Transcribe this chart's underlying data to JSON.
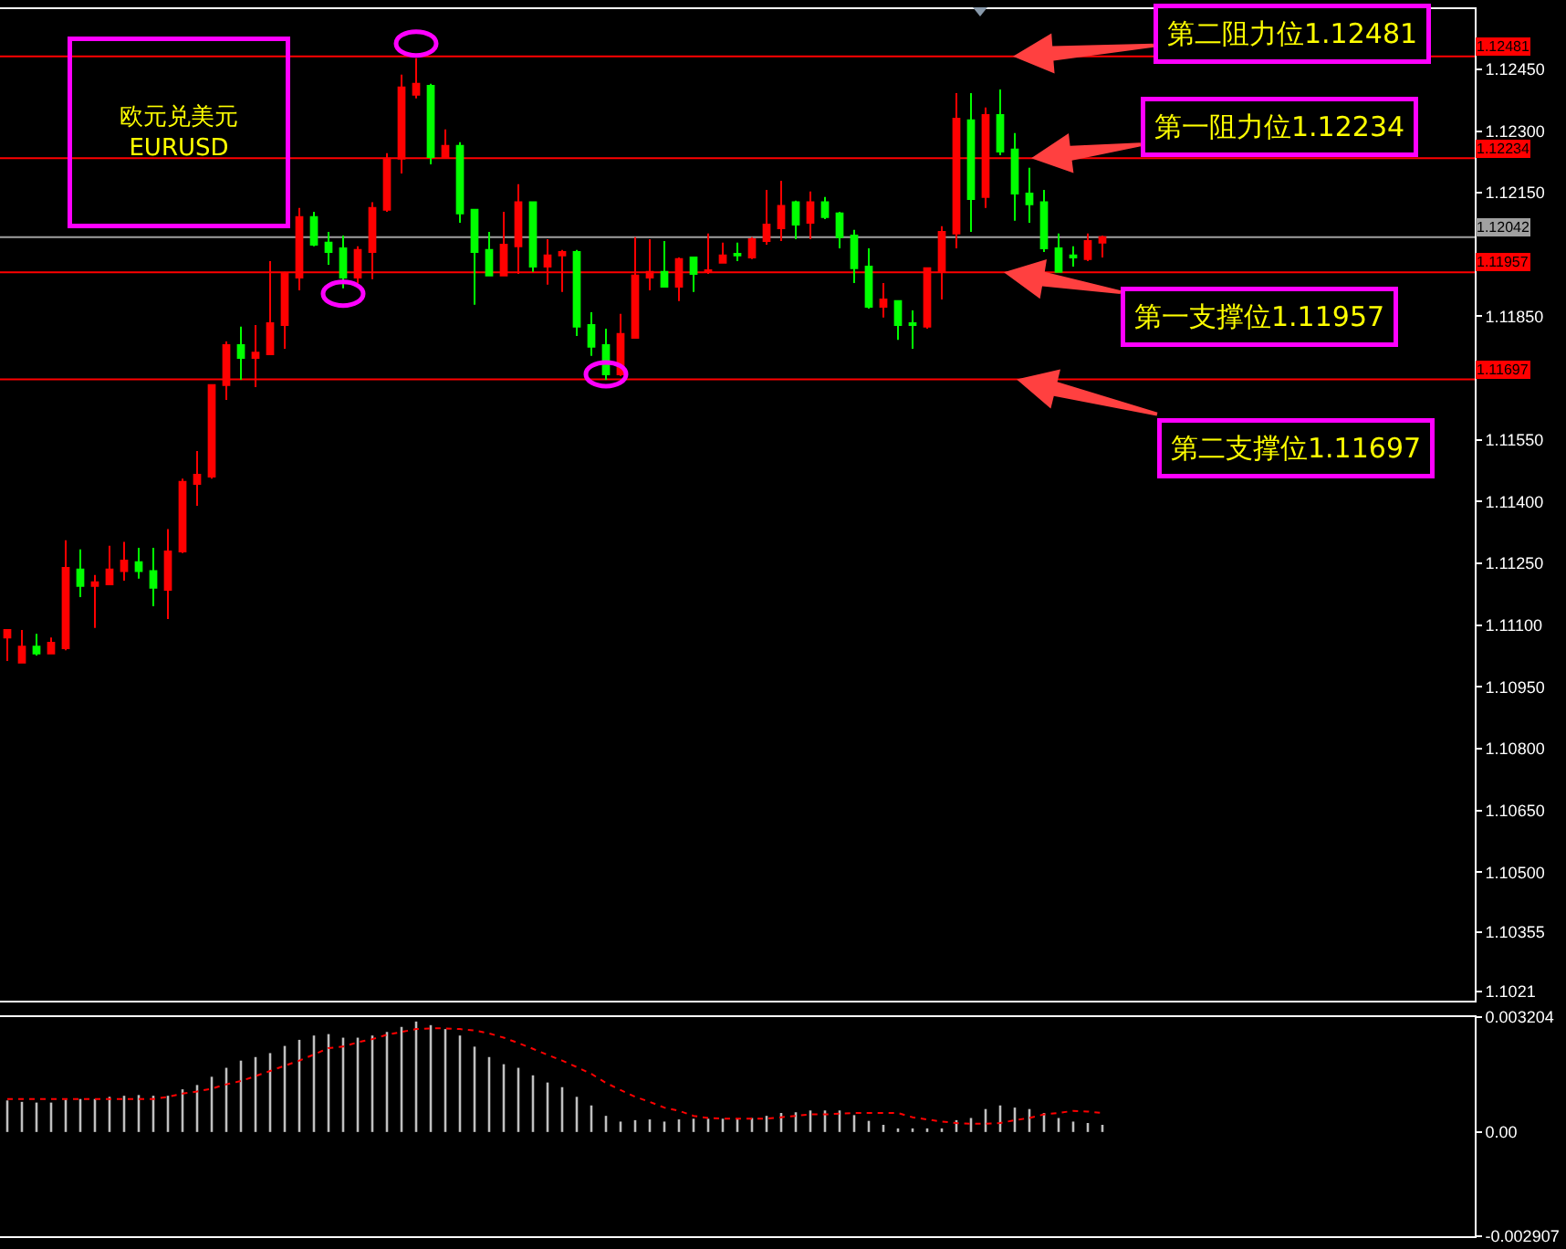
{
  "chart_data": [
    {
      "type": "candlestick",
      "categories": [
        null,
        null,
        null,
        null,
        null,
        null,
        null,
        null,
        null,
        null,
        null,
        null,
        null,
        null,
        null,
        null,
        null,
        null,
        null,
        null,
        null,
        null,
        null,
        null,
        null,
        null,
        null,
        null,
        null,
        null,
        null,
        null,
        null,
        null,
        null,
        null,
        null,
        null,
        null,
        null,
        null,
        null,
        null,
        null,
        null,
        null,
        null,
        null,
        null,
        null,
        null,
        null,
        null,
        null,
        null,
        null,
        null,
        null,
        null,
        null,
        null,
        null,
        null,
        null,
        null,
        null,
        null,
        null,
        null,
        null,
        null,
        null,
        null,
        null,
        null,
        null,
        null,
        null,
        null,
        null,
        null,
        null,
        null,
        null,
        null,
        null,
        null,
        null,
        null,
        null,
        null,
        null,
        null,
        null,
        null,
        null,
        null,
        null,
        null,
        null,
        null
      ],
      "ohlc": [
        [
          1.1107,
          1.11088,
          1.11013,
          1.11088
        ],
        [
          1.11009,
          1.11088,
          1.11009,
          1.11048
        ],
        [
          1.11048,
          1.11079,
          1.11026,
          1.11031
        ],
        [
          1.11031,
          1.1107,
          1.11031,
          1.11057
        ],
        [
          1.11044,
          1.11306,
          1.11039,
          1.11239
        ],
        [
          1.11235,
          1.11284,
          1.11168,
          1.11195
        ],
        [
          1.11195,
          1.11222,
          1.11093,
          1.11204
        ],
        [
          1.11199,
          1.11293,
          1.11199,
          1.11235
        ],
        [
          1.11231,
          1.11302,
          1.11208,
          1.11257
        ],
        [
          1.11253,
          1.11288,
          1.11213,
          1.11231
        ],
        [
          1.11231,
          1.11288,
          1.11146,
          1.11191
        ],
        [
          1.11186,
          1.11333,
          1.11115,
          1.11279
        ],
        [
          1.11279,
          1.11456,
          1.11275,
          1.11448
        ],
        [
          1.11443,
          1.11523,
          1.1139,
          1.11465
        ],
        [
          1.11461,
          1.11683,
          1.11456,
          1.11683
        ],
        [
          1.11683,
          1.11789,
          1.11647,
          1.1178
        ],
        [
          1.1178,
          1.11825,
          1.11696,
          1.11749
        ],
        [
          1.11749,
          1.11829,
          1.11678,
          1.11762
        ],
        [
          1.11758,
          1.11984,
          1.11758,
          1.11833
        ],
        [
          1.11829,
          1.11958,
          1.11771,
          1.11953
        ],
        [
          1.11944,
          1.12113,
          1.11913,
          1.12091
        ],
        [
          1.12091,
          1.12104,
          1.1202,
          1.12024
        ],
        [
          1.12029,
          1.12055,
          1.11975,
          1.12006
        ],
        [
          1.12015,
          1.12046,
          1.11918,
          1.11944
        ],
        [
          1.11944,
          1.1202,
          1.11931,
          1.12011
        ],
        [
          1.12006,
          1.12127,
          1.1194,
          1.12113
        ],
        [
          1.12109,
          1.12246,
          1.12104,
          1.12233
        ],
        [
          1.12233,
          1.12437,
          1.12197,
          1.12406
        ],
        [
          1.12388,
          1.12477,
          1.12379,
          1.12415
        ],
        [
          1.1241,
          1.12415,
          1.12219,
          1.12237
        ],
        [
          1.12237,
          1.12304,
          1.12233,
          1.12264
        ],
        [
          1.12264,
          1.12273,
          1.12077,
          1.121
        ],
        [
          1.12109,
          1.12109,
          1.11878,
          1.12006
        ],
        [
          1.12011,
          1.12055,
          1.11949,
          1.11949
        ],
        [
          1.11949,
          1.12104,
          1.11949,
          1.12024
        ],
        [
          1.1202,
          1.12171,
          1.11953,
          1.12127
        ],
        [
          1.12127,
          1.12127,
          1.11958,
          1.11971
        ],
        [
          1.11971,
          1.12037,
          1.11927,
          1.11998
        ],
        [
          1.11998,
          1.12011,
          1.11909,
          1.12006
        ],
        [
          1.12006,
          1.12011,
          1.11802,
          1.11825
        ],
        [
          1.11829,
          1.1186,
          1.11754,
          1.11776
        ],
        [
          1.1178,
          1.1182,
          1.11696,
          1.11709
        ],
        [
          1.11709,
          1.11856,
          1.11705,
          1.11807
        ],
        [
          1.11798,
          1.12042,
          1.11798,
          1.11949
        ],
        [
          1.11944,
          1.12037,
          1.11913,
          1.11958
        ],
        [
          1.11958,
          1.12033,
          1.11922,
          1.11922
        ],
        [
          1.11922,
          1.11993,
          1.11887,
          1.11989
        ],
        [
          1.11993,
          1.11993,
          1.11909,
          1.11953
        ],
        [
          1.11958,
          1.12051,
          1.11953,
          1.11962
        ],
        [
          1.1198,
          1.12029,
          1.1198,
          1.11998
        ],
        [
          1.12002,
          1.12029,
          1.11984,
          1.11998
        ],
        [
          1.11993,
          1.12042,
          1.11989,
          1.12037
        ],
        [
          1.12033,
          1.12157,
          1.12024,
          1.12073
        ],
        [
          1.12064,
          1.12179,
          1.12033,
          1.12118
        ],
        [
          1.12127,
          1.12131,
          1.12037,
          1.12073
        ],
        [
          1.12077,
          1.12153,
          1.12037,
          1.12127
        ],
        [
          1.12127,
          1.1214,
          1.12086,
          1.12091
        ],
        [
          1.121,
          1.12104,
          1.12015,
          1.12042
        ],
        [
          1.12046,
          1.1206,
          1.11931,
          1.11967
        ],
        [
          1.11971,
          1.12015,
          1.11869,
          1.11873
        ],
        [
          1.11873,
          1.11931,
          1.11847,
          1.11891
        ],
        [
          1.11887,
          1.11887,
          1.11793,
          1.11829
        ],
        [
          1.11833,
          1.11864,
          1.11771,
          1.11829
        ],
        [
          1.11825,
          1.11967,
          1.1182,
          1.11967
        ],
        [
          1.11958,
          1.12069,
          1.11891,
          1.12055
        ],
        [
          1.12051,
          1.12392,
          1.12015,
          1.1233
        ],
        [
          1.12326,
          1.12392,
          1.12055,
          1.12135
        ],
        [
          1.1214,
          1.12357,
          1.12113,
          1.12339
        ],
        [
          1.12339,
          1.12401,
          1.12241,
          1.1225
        ],
        [
          1.12255,
          1.12295,
          1.12082,
          1.12148
        ],
        [
          1.12148,
          1.12211,
          1.12077,
          1.12122
        ],
        [
          1.12127,
          1.12157,
          1.12006,
          1.12015
        ],
        [
          1.12015,
          1.12051,
          1.11958,
          1.11958
        ],
        [
          1.11998,
          1.1202,
          1.11971,
          1.11993
        ],
        [
          1.11989,
          1.12051,
          1.11984,
          1.12033
        ],
        [
          1.12029,
          1.12046,
          1.11993,
          1.12042
        ],
        null,
        null,
        null,
        null,
        null,
        null,
        null,
        null,
        null,
        null,
        null,
        null,
        null,
        null,
        null,
        null,
        null,
        null,
        null,
        null,
        null,
        null,
        null,
        null,
        null
      ],
      "colors": [
        "#ff0000",
        "#ff0000",
        "#00ff00",
        "#ff0000",
        "#ff0000",
        "#00ff00",
        "#ff0000",
        "#ff0000",
        "#ff0000",
        "#00ff00",
        "#00ff00",
        "#ff0000",
        "#ff0000",
        "#ff0000",
        "#ff0000",
        "#ff0000",
        "#00ff00",
        "#ff0000",
        "#ff0000",
        "#ff0000",
        "#ff0000",
        "#00ff00",
        "#00ff00",
        "#00ff00",
        "#ff0000",
        "#ff0000",
        "#ff0000",
        "#ff0000",
        "#ff0000",
        "#00ff00",
        "#ff0000",
        "#00ff00",
        "#00ff00",
        "#00ff00",
        "#ff0000",
        "#ff0000",
        "#00ff00",
        "#ff0000",
        "#ff0000",
        "#00ff00",
        "#00ff00",
        "#00ff00",
        "#ff0000",
        "#ff0000",
        "#ff0000",
        "#00ff00",
        "#ff0000",
        "#00ff00",
        "#ff0000",
        "#ff0000",
        "#00ff00",
        "#ff0000",
        "#ff0000",
        "#ff0000",
        "#00ff00",
        "#ff0000",
        "#00ff00",
        "#00ff00",
        "#00ff00",
        "#00ff00",
        "#ff0000",
        "#00ff00",
        "#00ff00",
        "#ff0000",
        "#ff0000",
        "#ff0000",
        "#00ff00",
        "#ff0000",
        "#00ff00",
        "#00ff00",
        "#00ff00",
        "#00ff00",
        "#00ff00",
        "#00ff00",
        "#ff0000",
        "#ff0000",
        null,
        null,
        null,
        null,
        null,
        null,
        null,
        null,
        null,
        null,
        null,
        null,
        null,
        null,
        null,
        null,
        null,
        null,
        null,
        null,
        null,
        null,
        null,
        null,
        null
      ],
      "ylim": [
        1.10188,
        1.12596
      ],
      "yticks": [
        {
          "value": 1.1245,
          "label": "1.12450"
        },
        {
          "value": 1.123,
          "label": "1.12300"
        },
        {
          "value": 1.1215,
          "label": "1.12150"
        },
        {
          "value": 1.1185,
          "label": "1.11850"
        },
        {
          "value": 1.1155,
          "label": "1.11550"
        },
        {
          "value": 1.114,
          "label": "1.11400"
        },
        {
          "value": 1.1125,
          "label": "1.11250"
        },
        {
          "value": 1.111,
          "label": "1.11100"
        },
        {
          "value": 1.1095,
          "label": "1.10950"
        },
        {
          "value": 1.108,
          "label": "1.10800"
        },
        {
          "value": 1.1065,
          "label": "1.10650"
        },
        {
          "value": 1.105,
          "label": "1.10500"
        },
        1.10355,
        1.1021
      ],
      "tick_labels": "y",
      "ref_lines": [
        {
          "axis": "y",
          "value": 1.12481,
          "label": "1.12481",
          "color": "#ff0000"
        },
        {
          "axis": "y",
          "value": 1.12234,
          "label": "1.12234",
          "color": "#ff0000"
        },
        {
          "axis": "y",
          "value": 1.12042,
          "label": "1.12042",
          "color": "#a0a0a0"
        },
        {
          "axis": "y",
          "value": 1.11957,
          "label": "1.11957",
          "color": "#ff0000"
        },
        {
          "axis": "y",
          "value": 1.11697,
          "label": "1.11697",
          "color": "#ff0000"
        }
      ],
      "annotations": [
        "欧元兑美元\nEURUSD",
        {
          "text": "第二阻力位1.12481",
          "y": 1.12481
        },
        {
          "text": "第一阻力位1.12234",
          "y": 1.12234
        },
        {
          "text": "第一支撑位1.11957",
          "y": 1.11957
        },
        {
          "text": "第二支撑位1.11697",
          "y": 1.11697
        }
      ]
    },
    {
      "type": "bar",
      "categories": [
        null,
        null,
        null,
        null,
        null,
        null,
        null,
        null,
        null,
        null,
        null,
        null,
        null,
        null,
        null,
        null,
        null,
        null,
        null,
        null,
        null,
        null,
        null,
        null,
        null,
        null,
        null,
        null,
        null,
        null,
        null,
        null,
        null,
        null,
        null,
        null,
        null,
        null,
        null,
        null,
        null,
        null,
        null,
        null,
        null,
        null,
        null,
        null,
        null,
        null,
        null,
        null,
        null,
        null,
        null,
        null,
        null,
        null,
        null,
        null,
        null,
        null,
        null,
        null,
        null,
        null,
        null,
        null,
        null,
        null,
        null,
        null,
        null,
        null,
        null,
        null,
        null,
        null,
        null,
        null,
        null,
        null,
        null,
        null,
        null,
        null,
        null,
        null,
        null,
        null,
        null,
        null,
        null,
        null,
        null,
        null,
        null,
        null,
        null,
        null,
        null
      ],
      "series": [
        {
          "type": "bar",
          "color": "#c0c0c0",
          "values": [
            0.00088,
            0.00084,
            0.00082,
            0.00082,
            0.0009,
            0.00092,
            0.00092,
            0.00098,
            0.00101,
            0.00103,
            0.00101,
            0.00101,
            0.00119,
            0.00131,
            0.00154,
            0.00179,
            0.00199,
            0.00209,
            0.0022,
            0.0024,
            0.00257,
            0.00269,
            0.00273,
            0.00263,
            0.00263,
            0.00269,
            0.00279,
            0.00293,
            0.00308,
            0.00298,
            0.00287,
            0.00269,
            0.00238,
            0.00209,
            0.00189,
            0.00179,
            0.00158,
            0.00138,
            0.00125,
            0.00098,
            0.00074,
            0.00045,
            0.00029,
            0.00033,
            0.00035,
            0.00029,
            0.00035,
            0.00037,
            0.00037,
            0.00037,
            0.00037,
            0.00039,
            0.00045,
            0.00053,
            0.00055,
            0.0006,
            0.0006,
            0.0006,
            0.00047,
            0.00031,
            0.0002,
            0.0001,
            0.0001,
            0.0001,
            0.0001,
            0.00033,
            0.00039,
            0.00064,
            0.00074,
            0.00068,
            0.00064,
            0.00053,
            0.00039,
            0.00029,
            0.00025,
            0.0002,
            null,
            null,
            null,
            null,
            null,
            null,
            null,
            null,
            null,
            null,
            null,
            null,
            null,
            null,
            null,
            null,
            null,
            null,
            null,
            null,
            null,
            null,
            null,
            null,
            null
          ]
        },
        {
          "type": "line",
          "color": "#ff0000",
          "line_style": "dotted",
          "values": [
            0.00092,
            0.00092,
            0.00092,
            0.00092,
            0.00092,
            0.00092,
            0.00092,
            0.00092,
            0.00092,
            0.00092,
            0.00092,
            0.00098,
            0.00107,
            0.00113,
            0.00121,
            0.00133,
            0.00142,
            0.00156,
            0.0017,
            0.00185,
            0.00199,
            0.00216,
            0.00234,
            0.00238,
            0.0025,
            0.00259,
            0.00271,
            0.00279,
            0.00287,
            0.00289,
            0.00289,
            0.00287,
            0.00283,
            0.00275,
            0.00263,
            0.00248,
            0.00232,
            0.00215,
            0.00199,
            0.00181,
            0.00162,
            0.00137,
            0.00117,
            0.00098,
            0.00084,
            0.00068,
            0.00059,
            0.00045,
            0.00039,
            0.00037,
            0.00037,
            0.00037,
            0.00037,
            0.00041,
            0.00045,
            0.00049,
            0.00049,
            0.00051,
            0.00053,
            0.00053,
            0.00053,
            0.00053,
            0.00041,
            0.00035,
            0.00029,
            0.00025,
            0.00023,
            0.00023,
            0.00025,
            0.00033,
            0.00039,
            0.00049,
            0.00053,
            0.00059,
            0.00057,
            0.00053,
            null,
            null,
            null,
            null,
            null,
            null,
            null,
            null,
            null,
            null,
            null,
            null,
            null,
            null,
            null,
            null,
            null,
            null,
            null,
            null,
            null,
            null,
            null,
            null,
            null
          ]
        }
      ],
      "ylim": [
        -0.002907,
        0.003204
      ],
      "yticks": [
        0.003204,
        {
          "value": 0,
          "label": "0.00"
        },
        -0.002907
      ],
      "tick_labels": "y"
    }
  ]
}
